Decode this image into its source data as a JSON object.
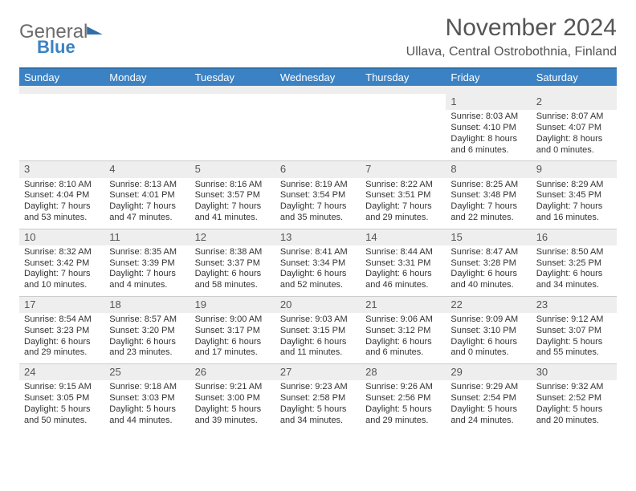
{
  "brand": {
    "general": "General",
    "blue": "Blue"
  },
  "title": "November 2024",
  "location": "Ullava, Central Ostrobothnia, Finland",
  "colors": {
    "header_bg": "#3b82c4",
    "header_border": "#2f6fa8",
    "daynum_bg": "#eeeeee",
    "text": "#333333",
    "title_text": "#555555"
  },
  "dow": [
    "Sunday",
    "Monday",
    "Tuesday",
    "Wednesday",
    "Thursday",
    "Friday",
    "Saturday"
  ],
  "weeks": [
    [
      null,
      null,
      null,
      null,
      null,
      {
        "n": "1",
        "rise": "8:03 AM",
        "set": "4:10 PM",
        "dl": "8 hours and 6 minutes."
      },
      {
        "n": "2",
        "rise": "8:07 AM",
        "set": "4:07 PM",
        "dl": "8 hours and 0 minutes."
      }
    ],
    [
      {
        "n": "3",
        "rise": "8:10 AM",
        "set": "4:04 PM",
        "dl": "7 hours and 53 minutes."
      },
      {
        "n": "4",
        "rise": "8:13 AM",
        "set": "4:01 PM",
        "dl": "7 hours and 47 minutes."
      },
      {
        "n": "5",
        "rise": "8:16 AM",
        "set": "3:57 PM",
        "dl": "7 hours and 41 minutes."
      },
      {
        "n": "6",
        "rise": "8:19 AM",
        "set": "3:54 PM",
        "dl": "7 hours and 35 minutes."
      },
      {
        "n": "7",
        "rise": "8:22 AM",
        "set": "3:51 PM",
        "dl": "7 hours and 29 minutes."
      },
      {
        "n": "8",
        "rise": "8:25 AM",
        "set": "3:48 PM",
        "dl": "7 hours and 22 minutes."
      },
      {
        "n": "9",
        "rise": "8:29 AM",
        "set": "3:45 PM",
        "dl": "7 hours and 16 minutes."
      }
    ],
    [
      {
        "n": "10",
        "rise": "8:32 AM",
        "set": "3:42 PM",
        "dl": "7 hours and 10 minutes."
      },
      {
        "n": "11",
        "rise": "8:35 AM",
        "set": "3:39 PM",
        "dl": "7 hours and 4 minutes."
      },
      {
        "n": "12",
        "rise": "8:38 AM",
        "set": "3:37 PM",
        "dl": "6 hours and 58 minutes."
      },
      {
        "n": "13",
        "rise": "8:41 AM",
        "set": "3:34 PM",
        "dl": "6 hours and 52 minutes."
      },
      {
        "n": "14",
        "rise": "8:44 AM",
        "set": "3:31 PM",
        "dl": "6 hours and 46 minutes."
      },
      {
        "n": "15",
        "rise": "8:47 AM",
        "set": "3:28 PM",
        "dl": "6 hours and 40 minutes."
      },
      {
        "n": "16",
        "rise": "8:50 AM",
        "set": "3:25 PM",
        "dl": "6 hours and 34 minutes."
      }
    ],
    [
      {
        "n": "17",
        "rise": "8:54 AM",
        "set": "3:23 PM",
        "dl": "6 hours and 29 minutes."
      },
      {
        "n": "18",
        "rise": "8:57 AM",
        "set": "3:20 PM",
        "dl": "6 hours and 23 minutes."
      },
      {
        "n": "19",
        "rise": "9:00 AM",
        "set": "3:17 PM",
        "dl": "6 hours and 17 minutes."
      },
      {
        "n": "20",
        "rise": "9:03 AM",
        "set": "3:15 PM",
        "dl": "6 hours and 11 minutes."
      },
      {
        "n": "21",
        "rise": "9:06 AM",
        "set": "3:12 PM",
        "dl": "6 hours and 6 minutes."
      },
      {
        "n": "22",
        "rise": "9:09 AM",
        "set": "3:10 PM",
        "dl": "6 hours and 0 minutes."
      },
      {
        "n": "23",
        "rise": "9:12 AM",
        "set": "3:07 PM",
        "dl": "5 hours and 55 minutes."
      }
    ],
    [
      {
        "n": "24",
        "rise": "9:15 AM",
        "set": "3:05 PM",
        "dl": "5 hours and 50 minutes."
      },
      {
        "n": "25",
        "rise": "9:18 AM",
        "set": "3:03 PM",
        "dl": "5 hours and 44 minutes."
      },
      {
        "n": "26",
        "rise": "9:21 AM",
        "set": "3:00 PM",
        "dl": "5 hours and 39 minutes."
      },
      {
        "n": "27",
        "rise": "9:23 AM",
        "set": "2:58 PM",
        "dl": "5 hours and 34 minutes."
      },
      {
        "n": "28",
        "rise": "9:26 AM",
        "set": "2:56 PM",
        "dl": "5 hours and 29 minutes."
      },
      {
        "n": "29",
        "rise": "9:29 AM",
        "set": "2:54 PM",
        "dl": "5 hours and 24 minutes."
      },
      {
        "n": "30",
        "rise": "9:32 AM",
        "set": "2:52 PM",
        "dl": "5 hours and 20 minutes."
      }
    ]
  ]
}
